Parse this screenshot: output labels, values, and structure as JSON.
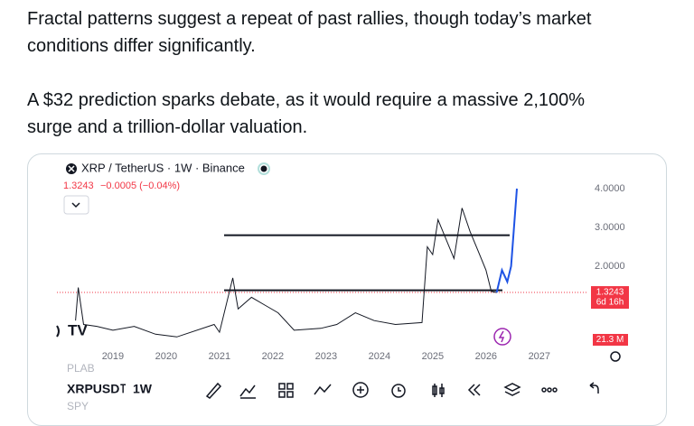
{
  "post": {
    "paragraphs": [
      [
        "Fractal patterns suggest a repeat of past rallies, though today’s market",
        "conditions differ significantly."
      ],
      [
        "A $32 prediction sparks debate, as it would require a massive 2,100%",
        "surge and a trillion-dollar valuation."
      ]
    ]
  },
  "chart": {
    "header": "XRP / TetherUS · 1W · Binance",
    "last": "1.3243",
    "change": "−0.0005 (−0.04%)",
    "xlim": [
      2017.95,
      2027.8
    ],
    "xticks": [
      2019,
      2020,
      2021,
      2022,
      2023,
      2024,
      2025,
      2026,
      2027
    ],
    "ylim": [
      0,
      4.2
    ],
    "yticks": [
      {
        "value": 4,
        "label": "4.0000"
      },
      {
        "value": 3,
        "label": "3.0000"
      },
      {
        "value": 2,
        "label": "2.0000"
      }
    ],
    "last_price": {
      "value": 1.3243,
      "label": "1.3243"
    },
    "countdown": "6d 16h",
    "volume": "21.3 M",
    "levels": [
      2.8,
      1.38
    ],
    "price": {
      "color": "#131722",
      "x": [
        2018.3,
        2018.35,
        2018.45,
        2018.7,
        2019.0,
        2019.4,
        2019.8,
        2020.2,
        2020.9,
        2021.0,
        2021.25,
        2021.35,
        2021.6,
        2021.85,
        2022.1,
        2022.4,
        2022.9,
        2023.2,
        2023.55,
        2023.9,
        2024.3,
        2024.8,
        2024.9,
        2025.0,
        2025.1,
        2025.4,
        2025.55,
        2025.7,
        2025.85,
        2026.0,
        2026.1,
        2026.2
      ],
      "values": [
        0.6,
        1.45,
        0.5,
        0.45,
        0.35,
        0.45,
        0.25,
        0.18,
        0.5,
        0.3,
        1.7,
        0.9,
        1.2,
        1.0,
        0.8,
        0.35,
        0.4,
        0.5,
        0.8,
        0.6,
        0.5,
        0.55,
        2.5,
        2.3,
        3.2,
        2.2,
        3.5,
        2.9,
        2.4,
        1.9,
        1.35,
        1.3243
      ]
    },
    "projection": {
      "color": "#1e53e5",
      "x": [
        2026.2,
        2026.3,
        2026.4,
        2026.47,
        2026.58
      ],
      "values": [
        1.3243,
        1.9,
        1.6,
        2.0,
        4.0
      ]
    },
    "toolbar": {
      "symbol": "XRPUSD⊺",
      "interval": "1W",
      "above": "PLAB",
      "below": "SPY"
    }
  }
}
